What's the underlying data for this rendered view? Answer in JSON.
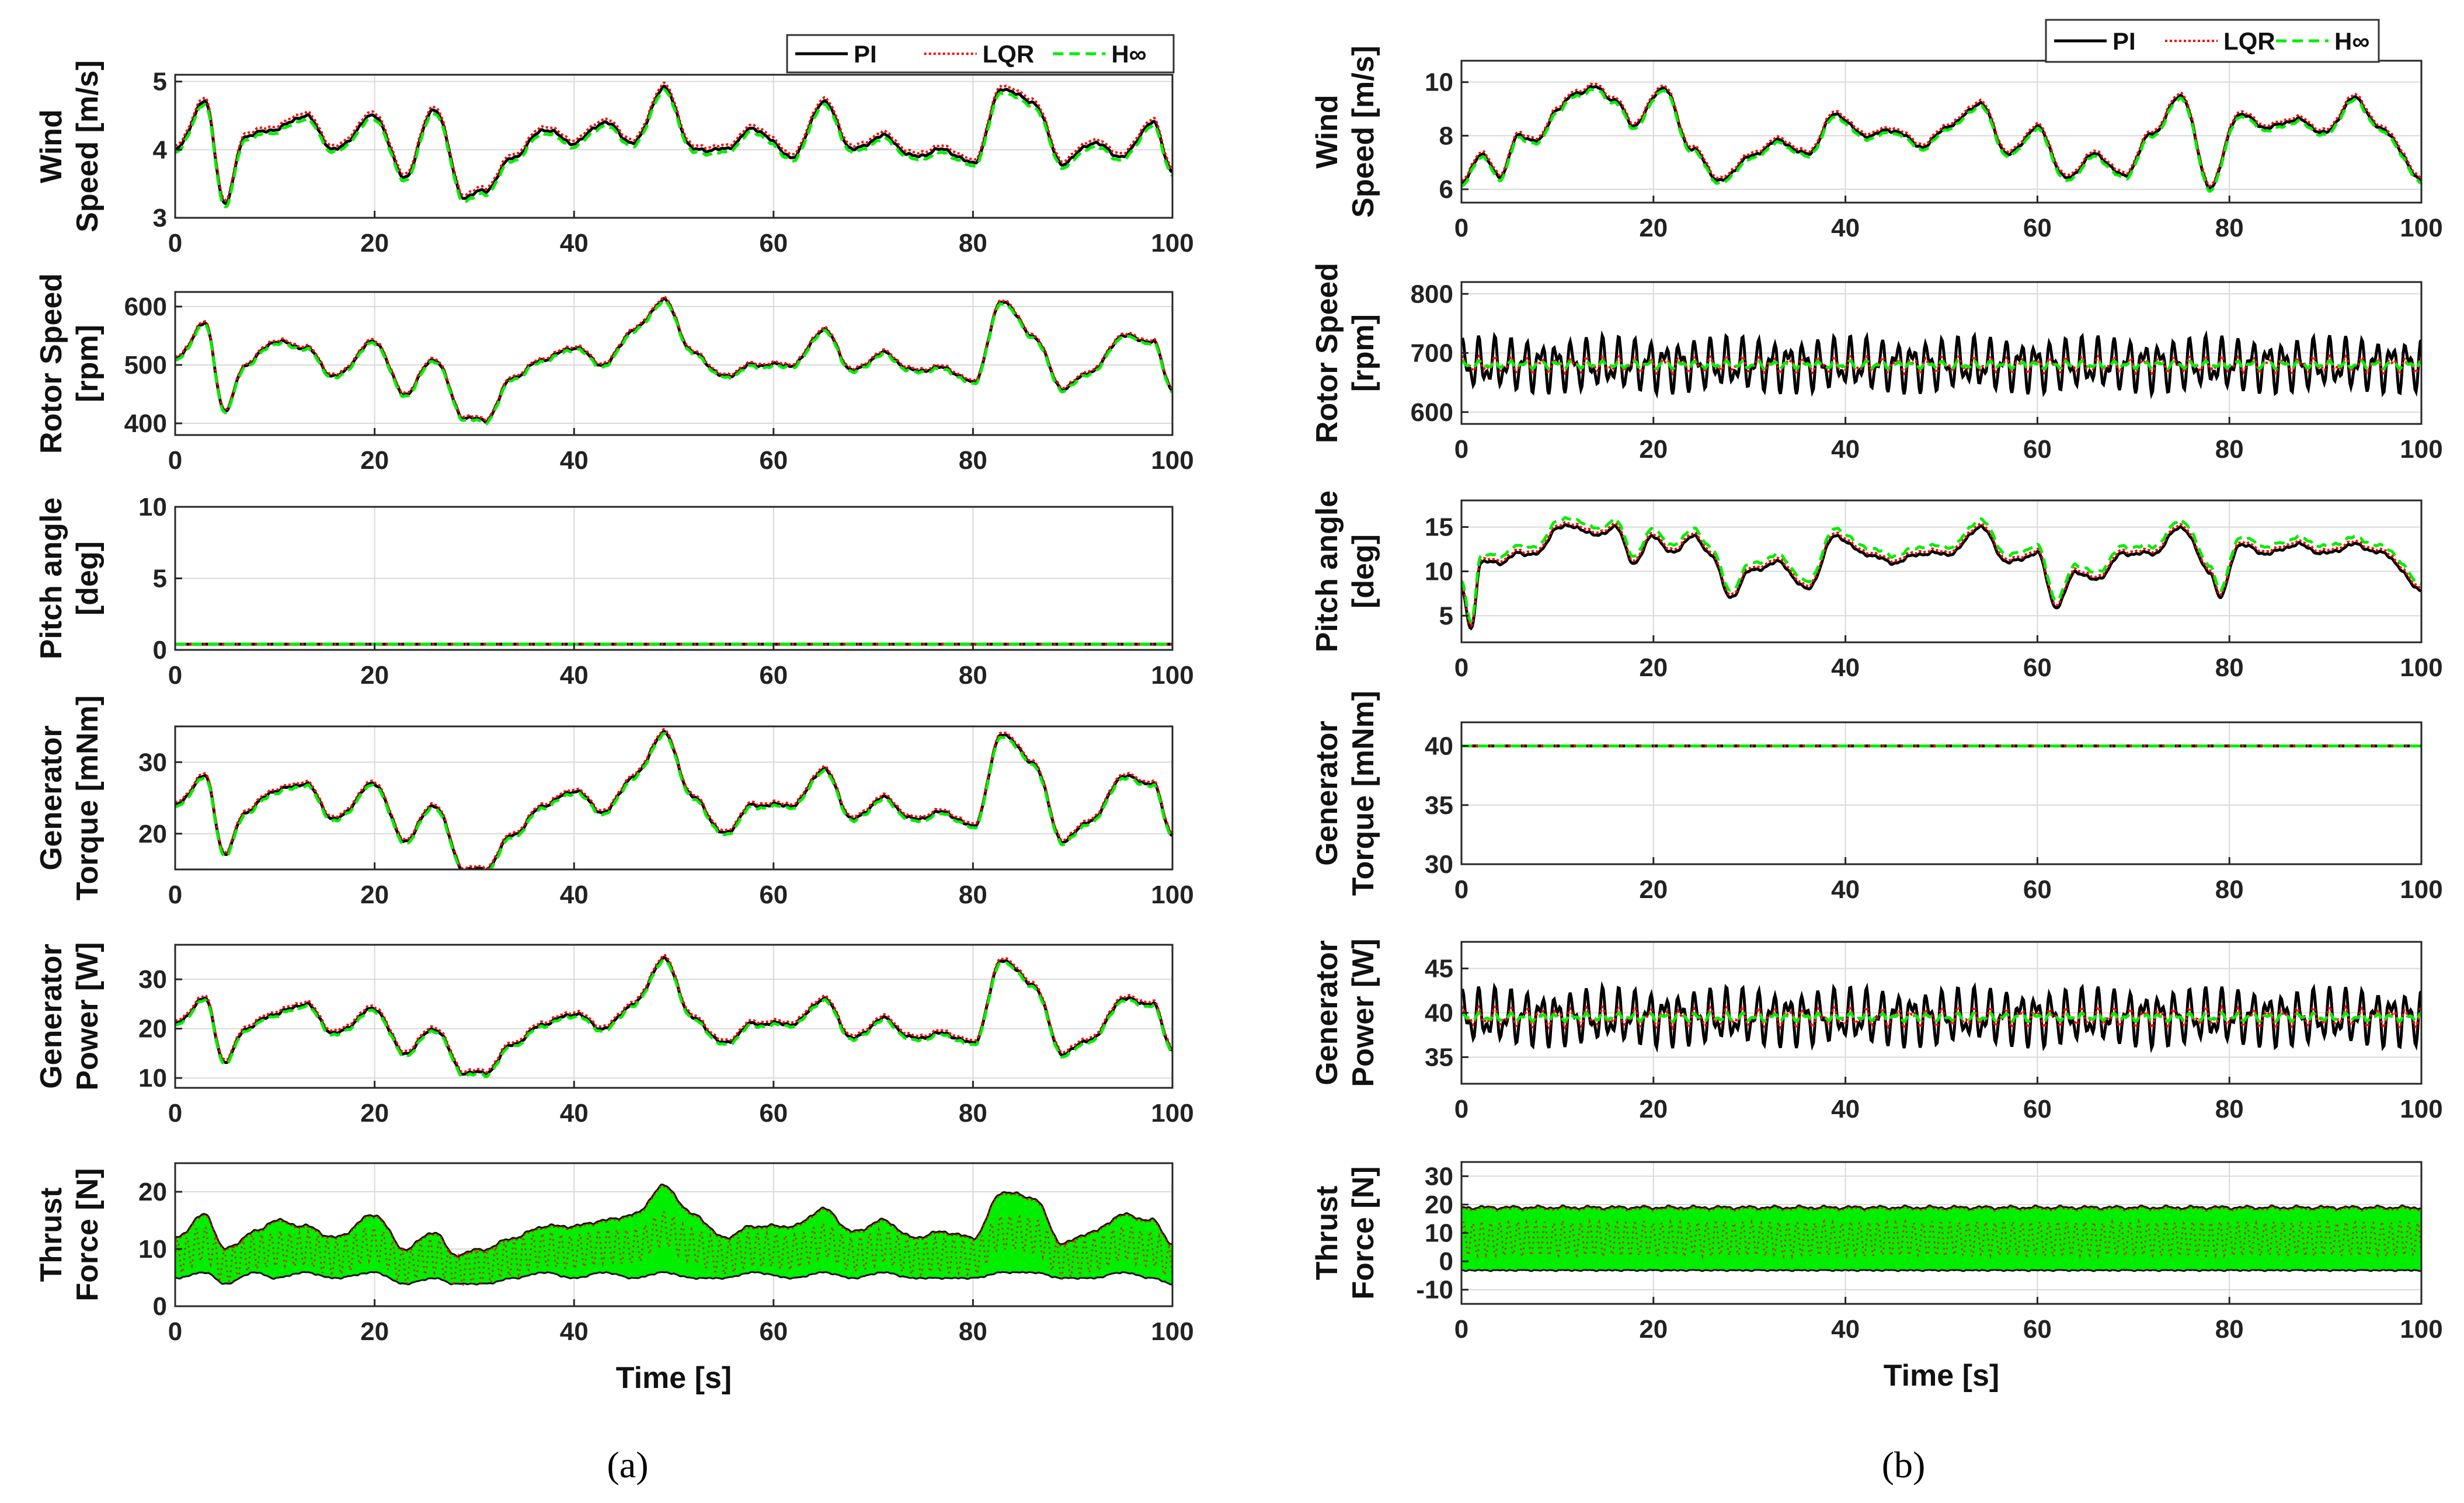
{
  "figure": {
    "panel_labels": [
      "(a)",
      "(b)"
    ],
    "xlabel": "Time [s]"
  },
  "colors": {
    "PI": "#000000",
    "LQR": "#ff0000",
    "Hinf": "#00ee00",
    "grid": "#d9d9d9",
    "axis": "#262626"
  },
  "chart_data": [
    {
      "panel": "a",
      "type": "line",
      "legend": [
        "PI",
        "LQR",
        "H∞"
      ],
      "legend_position": "top-right",
      "x_range": [
        0,
        100
      ],
      "x_ticks": [
        0,
        20,
        40,
        60,
        80,
        100
      ],
      "xlabel": "Time [s]",
      "subplots": [
        {
          "ylabel": [
            "Wind",
            "Speed [m/s]"
          ],
          "ylim": [
            3,
            5.1
          ],
          "yticks": [
            3,
            4,
            5
          ],
          "mode": "overlay",
          "t": [
            0,
            3,
            5,
            7,
            10,
            13,
            16,
            20,
            23,
            26,
            29,
            31,
            34,
            37,
            40,
            43,
            46,
            49,
            52,
            55,
            58,
            62,
            65,
            68,
            71,
            74,
            77,
            80,
            83,
            86,
            89,
            92,
            95,
            98,
            100
          ],
          "pi": [
            4.0,
            4.7,
            3.2,
            4.2,
            4.3,
            4.5,
            4.0,
            4.5,
            3.6,
            4.6,
            3.3,
            3.4,
            3.9,
            4.3,
            4.1,
            4.4,
            4.1,
            4.9,
            4.0,
            4.0,
            4.3,
            3.9,
            4.7,
            4.0,
            4.2,
            3.9,
            4.0,
            3.8,
            4.9,
            4.7,
            3.8,
            4.1,
            3.9,
            4.4,
            3.7
          ],
          "lqr_offset": 0.05,
          "hinf_offset": -0.05
        },
        {
          "ylabel": [
            "Rotor Speed",
            "[rpm]"
          ],
          "ylim": [
            380,
            625
          ],
          "yticks": [
            400,
            500,
            600
          ],
          "mode": "overlay",
          "t": [
            0,
            3,
            5,
            7,
            10,
            13,
            16,
            20,
            23,
            26,
            29,
            31,
            34,
            37,
            40,
            43,
            46,
            49,
            52,
            55,
            58,
            62,
            65,
            68,
            71,
            74,
            77,
            80,
            83,
            86,
            89,
            92,
            95,
            98,
            100
          ],
          "pi": [
            510,
            570,
            420,
            500,
            540,
            530,
            480,
            540,
            450,
            510,
            410,
            405,
            480,
            510,
            530,
            500,
            560,
            610,
            520,
            480,
            500,
            500,
            560,
            490,
            520,
            490,
            495,
            470,
            610,
            550,
            460,
            490,
            550,
            540,
            460
          ],
          "lqr_offset": 3,
          "hinf_offset": -3
        },
        {
          "ylabel": [
            "Pitch angle",
            "[deg]"
          ],
          "ylim": [
            0,
            10
          ],
          "yticks": [
            0,
            5,
            10
          ],
          "mode": "overlay",
          "t": [
            0,
            100
          ],
          "pi": [
            0.4,
            0.4
          ],
          "lqr_offset": 0,
          "hinf_offset": 0
        },
        {
          "ylabel": [
            "Generator",
            "Torque [mNm]"
          ],
          "ylim": [
            15,
            35
          ],
          "yticks": [
            20,
            30
          ],
          "mode": "overlay",
          "t": [
            0,
            3,
            5,
            7,
            10,
            13,
            16,
            20,
            23,
            26,
            29,
            31,
            34,
            37,
            40,
            43,
            46,
            49,
            52,
            55,
            58,
            62,
            65,
            68,
            71,
            74,
            77,
            80,
            83,
            86,
            89,
            92,
            95,
            98,
            100
          ],
          "pi": [
            24,
            28,
            17,
            23,
            26,
            27,
            22,
            27,
            19,
            24,
            15,
            15,
            20,
            24,
            26,
            23,
            28,
            34,
            25,
            20,
            24,
            24,
            29,
            22,
            25,
            22,
            23,
            21,
            34,
            30,
            19,
            22,
            28,
            27,
            20
          ],
          "lqr_offset": 0.3,
          "hinf_offset": -0.3
        },
        {
          "ylabel": [
            "Generator",
            "Power [W]"
          ],
          "ylim": [
            8,
            37
          ],
          "yticks": [
            10,
            20,
            30
          ],
          "mode": "overlay",
          "t": [
            0,
            3,
            5,
            7,
            10,
            13,
            16,
            20,
            23,
            26,
            29,
            31,
            34,
            37,
            40,
            43,
            46,
            49,
            52,
            55,
            58,
            62,
            65,
            68,
            71,
            74,
            77,
            80,
            83,
            86,
            89,
            92,
            95,
            98,
            100
          ],
          "pi": [
            21,
            26,
            13,
            20,
            23,
            25,
            19,
            24,
            15,
            20,
            11,
            11,
            17,
            21,
            23,
            20,
            25,
            34,
            22,
            17,
            21,
            21,
            26,
            18,
            22,
            18,
            19,
            17,
            34,
            29,
            15,
            18,
            26,
            25,
            16
          ],
          "lqr_offset": 0.5,
          "hinf_offset": -0.4
        },
        {
          "ylabel": [
            "Thrust",
            "Force [N]"
          ],
          "ylim": [
            0,
            25
          ],
          "yticks": [
            0,
            10,
            20
          ],
          "mode": "band",
          "t": [
            0,
            3,
            5,
            8,
            10,
            13,
            16,
            20,
            23,
            26,
            28,
            31,
            34,
            37,
            40,
            43,
            46,
            49,
            52,
            55,
            58,
            62,
            65,
            68,
            71,
            74,
            77,
            80,
            83,
            86,
            89,
            92,
            95,
            98,
            100
          ],
          "upper": [
            12,
            16,
            10,
            13,
            15,
            14,
            12,
            16,
            10,
            13,
            9,
            10,
            12,
            14,
            14,
            15,
            16,
            21,
            16,
            12,
            14,
            14,
            17,
            13,
            15,
            12,
            13,
            12,
            20,
            19,
            11,
            13,
            16,
            15,
            11
          ],
          "lower": [
            5,
            6,
            4,
            6,
            5,
            6,
            5,
            6,
            4,
            5,
            4,
            4,
            5,
            6,
            5,
            6,
            5,
            6,
            5,
            5,
            6,
            5,
            6,
            5,
            6,
            5,
            5,
            5,
            6,
            6,
            5,
            5,
            6,
            5,
            4
          ]
        }
      ]
    },
    {
      "panel": "b",
      "type": "line",
      "legend": [
        "PI",
        "LQR",
        "H∞"
      ],
      "legend_position": "top-right",
      "x_range": [
        0,
        100
      ],
      "x_ticks": [
        0,
        20,
        40,
        60,
        80,
        100
      ],
      "xlabel": "Time [s]",
      "subplots": [
        {
          "ylabel": [
            "Wind",
            "Speed [m/s]"
          ],
          "ylim": [
            5.5,
            10.8
          ],
          "yticks": [
            6,
            8,
            10
          ],
          "mode": "overlay",
          "t": [
            0,
            2,
            4,
            6,
            8,
            10,
            12,
            14,
            16,
            18,
            21,
            24,
            27,
            30,
            33,
            36,
            39,
            42,
            45,
            48,
            51,
            54,
            57,
            60,
            63,
            66,
            69,
            72,
            75,
            78,
            81,
            84,
            87,
            90,
            93,
            96,
            100
          ],
          "pi": [
            6.2,
            7.3,
            6.5,
            8.0,
            7.8,
            9.0,
            9.6,
            9.8,
            9.3,
            8.4,
            9.8,
            7.5,
            6.3,
            7.2,
            7.8,
            7.3,
            8.8,
            8.0,
            8.2,
            7.6,
            8.4,
            9.2,
            7.3,
            8.3,
            6.4,
            7.3,
            6.5,
            8.1,
            9.5,
            6.1,
            8.8,
            8.3,
            8.6,
            8.1,
            9.4,
            8.2,
            6.4
          ],
          "lqr_offset": 0.1,
          "hinf_offset": -0.1
        },
        {
          "ylabel": [
            "Rotor Speed",
            "[rpm]"
          ],
          "ylim": [
            580,
            820
          ],
          "yticks": [
            600,
            700,
            800
          ],
          "mode": "oscillate",
          "center": 680,
          "pi_amp": 50,
          "lqr_amp": 15,
          "hinf_amp": 7
        },
        {
          "ylabel": [
            "Pitch angle",
            "[deg]"
          ],
          "ylim": [
            2,
            18
          ],
          "yticks": [
            5,
            10,
            15
          ],
          "mode": "overlay",
          "t": [
            0,
            1,
            2,
            4,
            6,
            8,
            10,
            12,
            14,
            16,
            18,
            20,
            22,
            24,
            26,
            28,
            30,
            33,
            36,
            39,
            42,
            45,
            48,
            51,
            54,
            57,
            60,
            62,
            64,
            66,
            69,
            72,
            75,
            78,
            79,
            81,
            84,
            87,
            90,
            93,
            96,
            100
          ],
          "pi": [
            8,
            3.5,
            11,
            11,
            12,
            12,
            15,
            15,
            14,
            15,
            11,
            14,
            12,
            14,
            12,
            7,
            10,
            11,
            8,
            14,
            12,
            11,
            12,
            12,
            15,
            11,
            12,
            6,
            10,
            9,
            12,
            12,
            15,
            10,
            7,
            13,
            12,
            13,
            12,
            13,
            12,
            8
          ],
          "lqr_offset": 0.3,
          "hinf_offset": 0.8
        },
        {
          "ylabel": [
            "Generator",
            "Torque [mNm]"
          ],
          "ylim": [
            30,
            42
          ],
          "yticks": [
            30,
            35,
            40
          ],
          "mode": "overlay",
          "t": [
            0,
            100
          ],
          "pi": [
            40,
            40
          ],
          "lqr_offset": 0,
          "hinf_offset": 0
        },
        {
          "ylabel": [
            "Generator",
            "Power [W]"
          ],
          "ylim": [
            32,
            48
          ],
          "yticks": [
            35,
            40,
            45
          ],
          "mode": "oscillate",
          "center": 39.5,
          "pi_amp": 3.5,
          "lqr_amp": 1.2,
          "hinf_amp": 0.5
        },
        {
          "ylabel": [
            "Thrust",
            "Force [N]"
          ],
          "ylim": [
            -15,
            35
          ],
          "yticks": [
            -10,
            0,
            10,
            20,
            30
          ],
          "mode": "band",
          "band_center": 8,
          "band_half": 11,
          "t": [
            0,
            100
          ],
          "upper": [
            19,
            19
          ],
          "lower": [
            -3,
            -3
          ]
        }
      ]
    }
  ]
}
